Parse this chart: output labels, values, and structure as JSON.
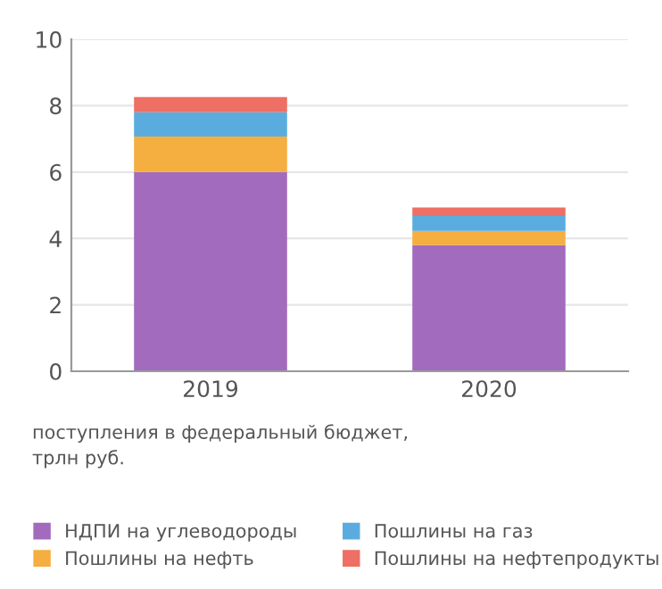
{
  "chart_data": {
    "type": "bar",
    "stacked": true,
    "categories": [
      "2019",
      "2020"
    ],
    "series": [
      {
        "name": "НДПИ на углеводороды",
        "color": "#a26bbd",
        "values": [
          6.0,
          3.8
        ]
      },
      {
        "name": "Пошлины на нефть",
        "color": "#f5ae40",
        "values": [
          1.07,
          0.43
        ]
      },
      {
        "name": "Пошлины на газ",
        "color": "#5aacdf",
        "values": [
          0.73,
          0.45
        ]
      },
      {
        "name": "Пошлины на нефтепродукты",
        "color": "#ee6f63",
        "values": [
          0.46,
          0.25
        ]
      }
    ],
    "ylim": [
      0,
      10
    ],
    "yticks": [
      0,
      2,
      4,
      6,
      8,
      10
    ],
    "grid": "y",
    "legend": "bottom",
    "annotations": [
      "поступления в федеральный бюджет,\nтрлн руб."
    ]
  }
}
